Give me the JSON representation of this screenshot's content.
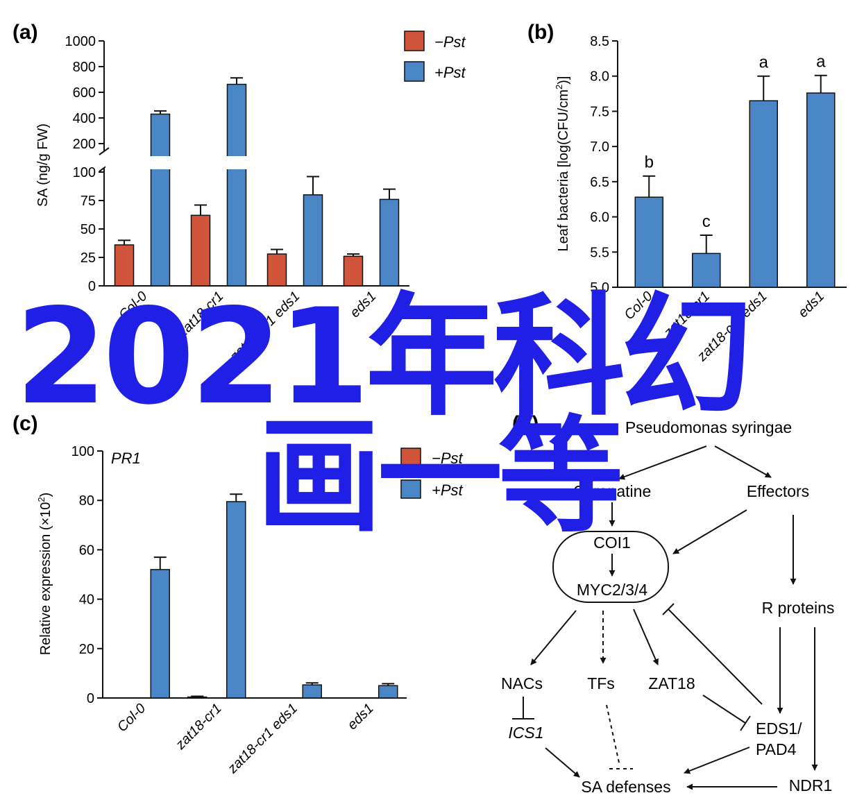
{
  "colors": {
    "minus": "#d0553a",
    "plus": "#4a86c6",
    "watermark": "#1f1fe6"
  },
  "chart_data": [
    {
      "panel": "(a)",
      "type": "bar",
      "ylabel": "SA (ng/g FW)",
      "categories": [
        "Col-0",
        "zat18-cr1",
        "zat18-cr1 eds1",
        "eds1"
      ],
      "legend": [
        "−Pst",
        "+Pst"
      ],
      "legend_position": "top-right",
      "ylim_lower": [
        0,
        100
      ],
      "ylim_upper": [
        100,
        1000
      ],
      "yticks_lower": [
        "0",
        "25",
        "50",
        "75",
        "100"
      ],
      "yticks_upper": [
        "200",
        "400",
        "600",
        "800",
        "1000"
      ],
      "series": [
        {
          "name": "−Pst",
          "values": [
            36,
            62,
            28,
            26
          ],
          "errors": [
            4,
            9,
            4,
            2
          ]
        },
        {
          "name": "+Pst",
          "values": [
            430,
            662,
            80,
            76
          ],
          "errors": [
            25,
            50,
            16,
            9
          ]
        }
      ]
    },
    {
      "panel": "(b)",
      "type": "bar",
      "ylabel": "Leaf bacteria [log(CFU/cm²)]",
      "ylabel_main": "Leaf bacteria [log(CFU/cm",
      "ylabel_sup": "2",
      "ylabel_end": ")]",
      "categories": [
        "Col-0",
        "zat18-cr1",
        "zat18-cr1 eds1",
        "eds1"
      ],
      "ylim": [
        5.0,
        8.5
      ],
      "yticks": [
        "5.0",
        "5.5",
        "6.0",
        "6.5",
        "7.0",
        "7.5",
        "8.0",
        "8.5"
      ],
      "series": [
        {
          "values": [
            6.28,
            5.48,
            7.65,
            7.76
          ],
          "errors": [
            0.3,
            0.26,
            0.35,
            0.25
          ]
        }
      ],
      "annotations": [
        "b",
        "c",
        "a",
        "a"
      ]
    },
    {
      "panel": "(c)",
      "type": "bar",
      "title": "PR1",
      "ylabel": "Relative expression (×10²)",
      "ylabel_main": "Relative expression (×10",
      "ylabel_sup": "2",
      "ylabel_end": ")",
      "categories": [
        "Col-0",
        "zat18-cr1",
        "zat18-cr1 eds1",
        "eds1"
      ],
      "legend": [
        "−Pst",
        "+Pst"
      ],
      "legend_position": "top-right",
      "ylim": [
        0,
        100
      ],
      "yticks": [
        "0",
        "20",
        "40",
        "60",
        "80",
        "100"
      ],
      "series": [
        {
          "name": "−Pst",
          "values": [
            0,
            0.4,
            0,
            0
          ],
          "errors": [
            0,
            0.3,
            0,
            0
          ]
        },
        {
          "name": "+Pst",
          "values": [
            52,
            79.5,
            5.3,
            5
          ],
          "errors": [
            5,
            3,
            0.8,
            0.8
          ]
        }
      ]
    }
  ],
  "diagram": {
    "panel": "(d)",
    "pathogen": "Pseudomonas syringae",
    "coronatine": "Coronatine",
    "effectors": "Effectors",
    "coi1": "COI1",
    "myc": "MYC2/3/4",
    "r_proteins": "R proteins",
    "nacs": "NACs",
    "tfs": "TFs",
    "zat18": "ZAT18",
    "ics1": "ICS1",
    "eds1_line1": "EDS1/",
    "eds1_line2": "PAD4",
    "ndr1": "NDR1",
    "sa_defenses": "SA defenses"
  },
  "watermark": {
    "line1": "2021年科幻",
    "line2": "画一等"
  }
}
